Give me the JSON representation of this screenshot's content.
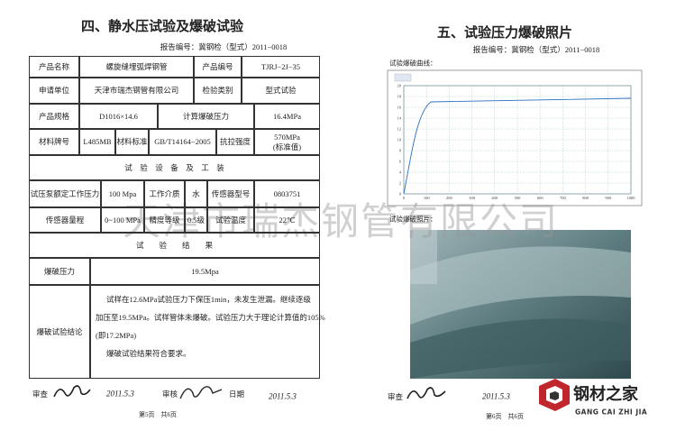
{
  "left_page": {
    "title": "四、静水压试验及爆破试验",
    "report_no": "报告编号：冀钢检（型式）2011−0018",
    "table": {
      "rows": [
        [
          "产品名称",
          "螺旋缝埋弧焊钢管",
          "产品编号",
          "TJRJ−2J−35"
        ],
        [
          "申请单位",
          "天津市瑞杰钢管有限公司",
          "检验类别",
          "型式试验"
        ],
        [
          "产品规格",
          "D1016×14.6",
          "计算爆破压力",
          "16.4MPa"
        ],
        [
          "材料牌号",
          "L485MB",
          "材料标准",
          "GB/T14164−2005",
          "抗拉强度",
          "570MPa\n(标准值)"
        ],
        [
          "试　验　设　备　及　工　装"
        ],
        [
          "试压泵额定工作压力",
          "100 Mpa",
          "工作介质",
          "水",
          "传感器型号",
          "0803751"
        ],
        [
          "传感器量程",
          "0~100 MPa",
          "精度等级",
          "0.5级",
          "试验温度",
          "22℃"
        ],
        [
          "试　　验　　结　　果"
        ],
        [
          "爆破压力",
          "19.5Mpa"
        ],
        [
          "爆破试验结论"
        ]
      ]
    },
    "conclusion": [
      "试样在12.6MPa试验压力下保压1min，未发生泄漏。继续逐级",
      "加压至19.5MPa。试样管体未爆破。试验压力大于理论计算值的105%",
      "(即17.2MPa)",
      "爆破试验结果符合要求。"
    ],
    "sign": {
      "review_label": "审查",
      "review_date": "2011.5.3",
      "audit_label": "审核",
      "date_label": "日期",
      "audit_date": "2011.5.3"
    },
    "page": "第5页　共6页"
  },
  "right_page": {
    "title": "五、试验压力爆破照片",
    "report_no": "报告编号：冀钢检（型式）2011−0018",
    "curve_label": "试验爆破曲线：",
    "curve": {
      "yticks": [
        0,
        2,
        4,
        6,
        8,
        10,
        12,
        14,
        16,
        18,
        20
      ],
      "xticks": [
        0,
        100,
        200,
        300,
        400,
        500,
        600,
        700,
        800,
        900,
        1000
      ]
    },
    "photo_label": "试验爆破照片：",
    "sign": {
      "review_label": "审查",
      "review_date": "2011.5.3"
    },
    "page": "第6页　共6页"
  },
  "watermark": "天津市瑞杰钢管有限公司",
  "logo": {
    "name": "钢材之家",
    "pinyin": "GANG CAI ZHI JIA"
  }
}
